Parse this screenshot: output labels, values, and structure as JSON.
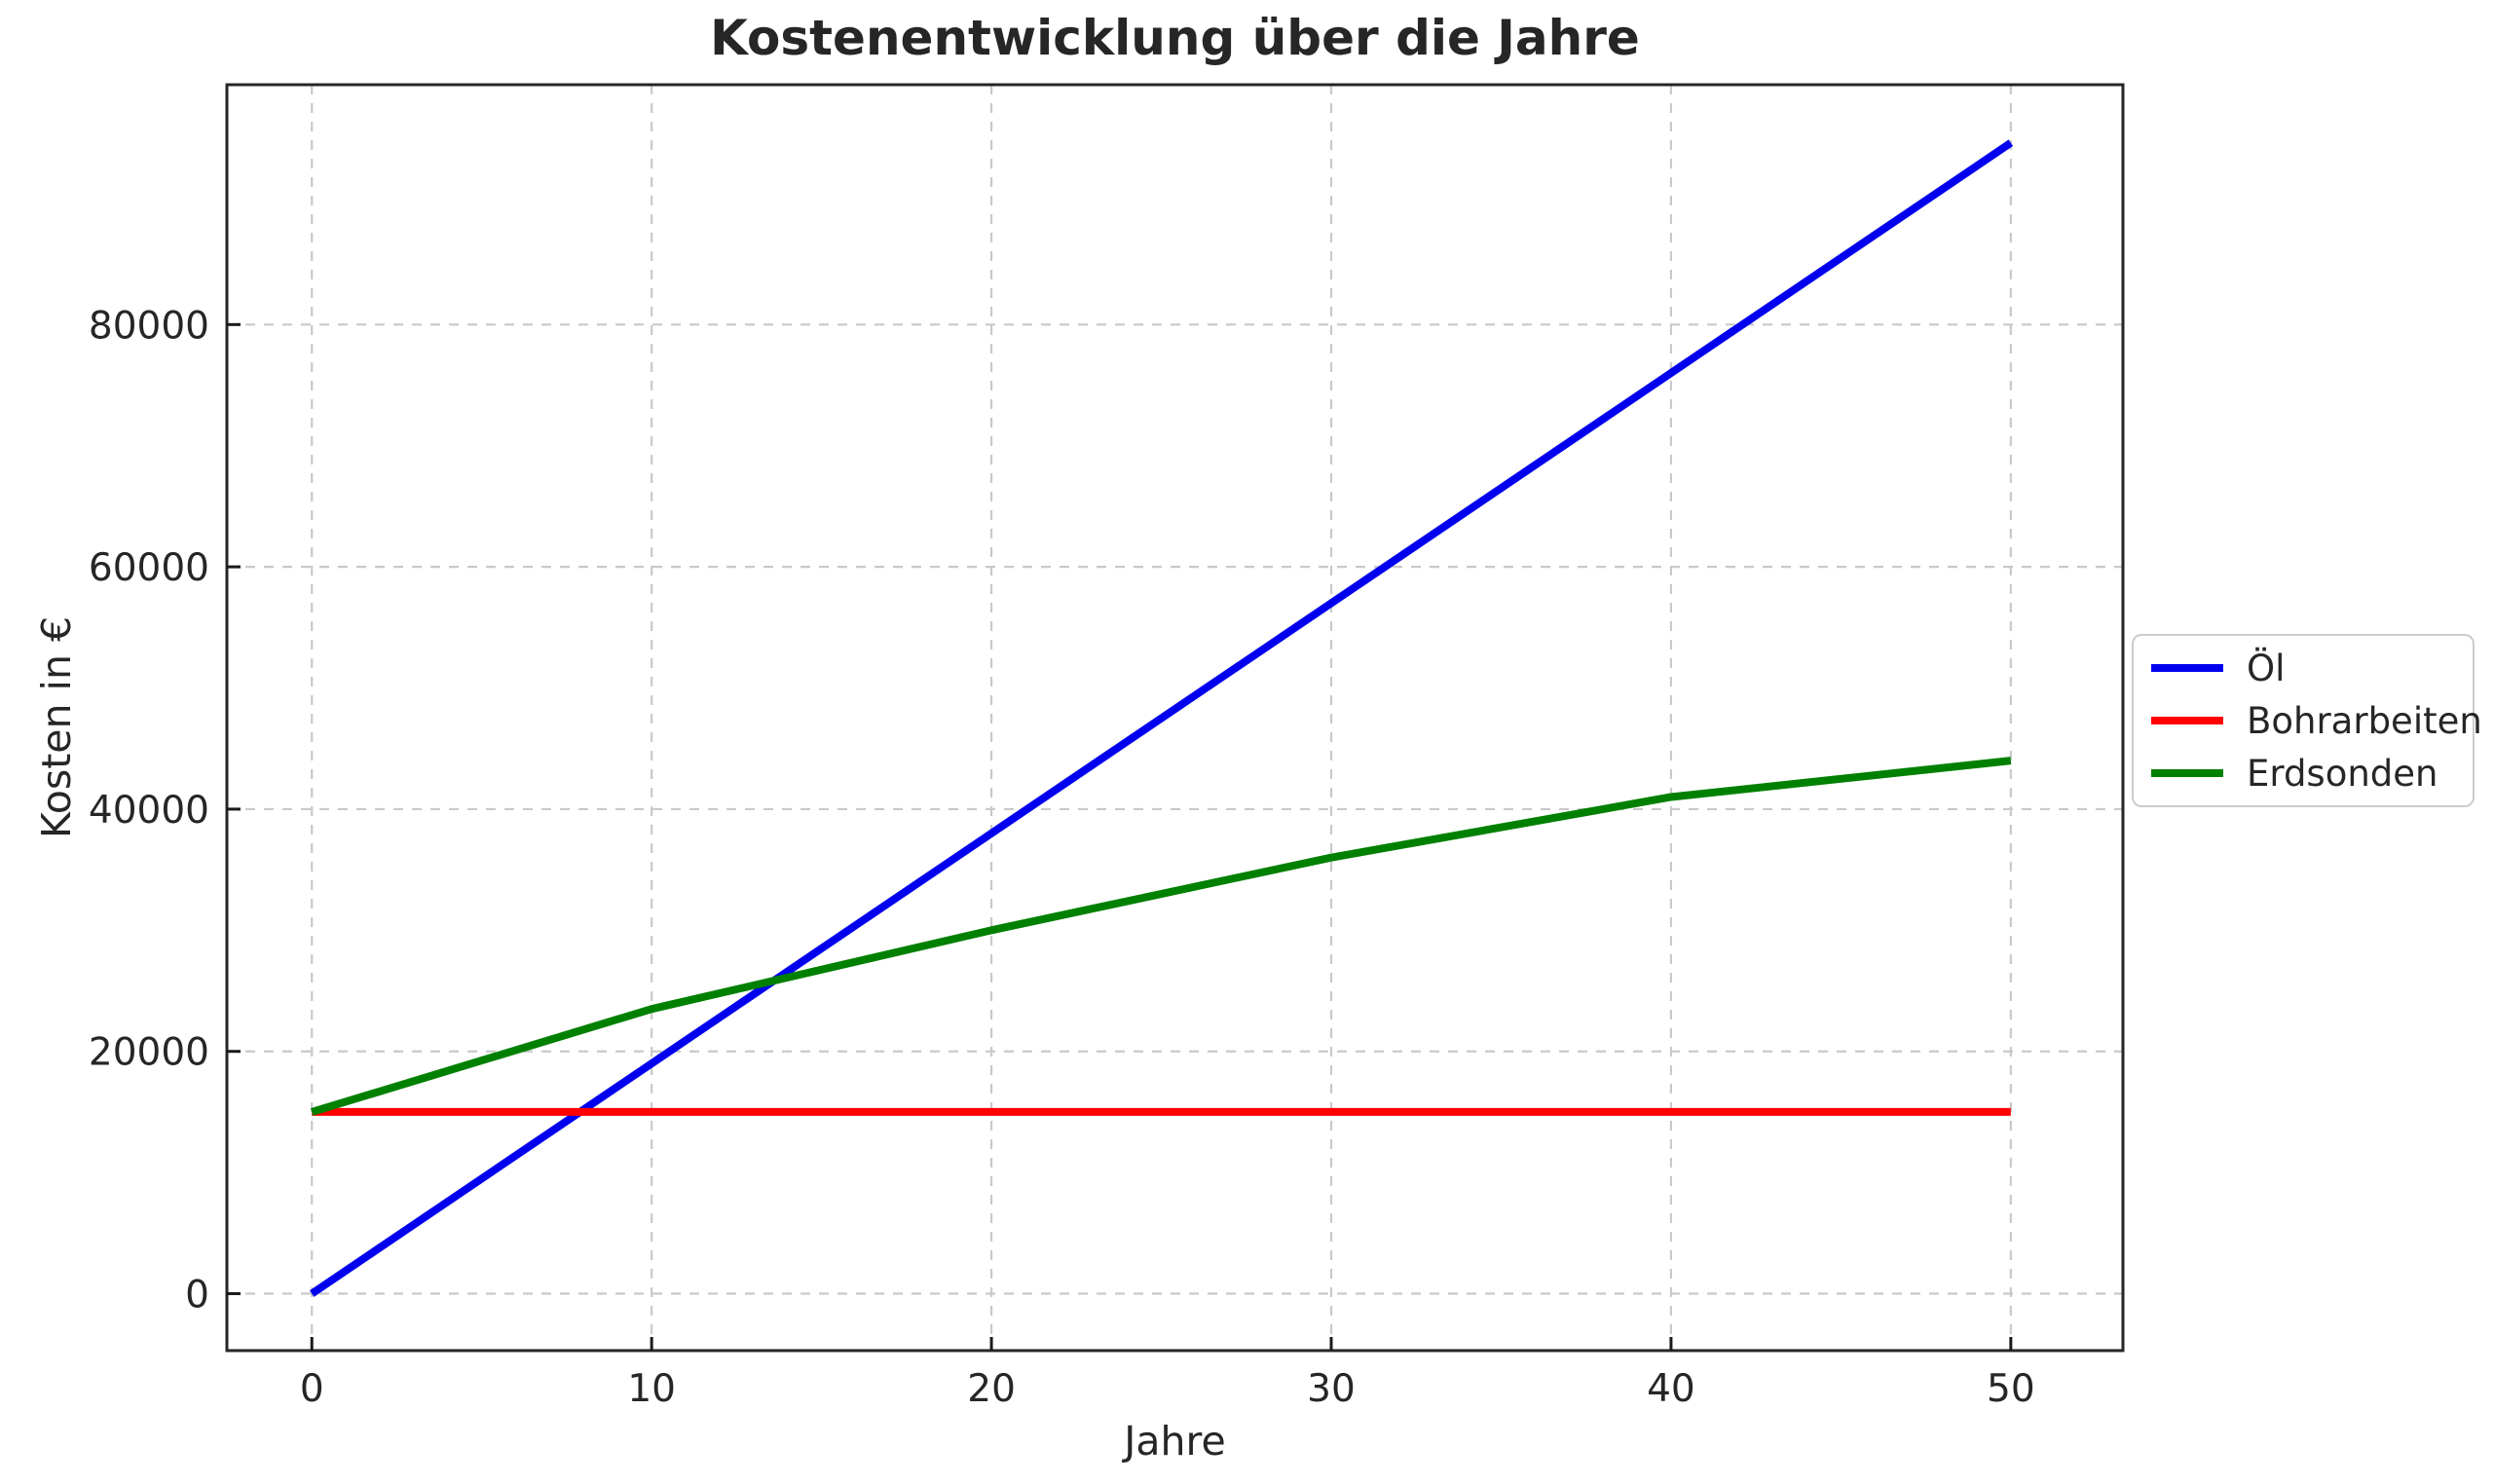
{
  "figure": {
    "background": "#ffffff"
  },
  "chart_data": {
    "type": "line",
    "title": "Kostenentwicklung über die Jahre",
    "xlabel": "Jahre",
    "ylabel": "Kosten in €",
    "x": [
      0,
      10,
      20,
      30,
      40,
      50
    ],
    "series": [
      {
        "name": "Öl",
        "color": "#0000ee",
        "values": [
          0,
          19000,
          38000,
          57000,
          76000,
          95000
        ]
      },
      {
        "name": "Bohrarbeiten",
        "color": "#ff0000",
        "values": [
          15000,
          15000,
          15000,
          15000,
          15000,
          15000
        ]
      },
      {
        "name": "Erdsonden",
        "color": "#008000",
        "values": [
          15000,
          23500,
          30000,
          36000,
          41000,
          44000
        ]
      }
    ],
    "xticks": [
      "0",
      "10",
      "20",
      "30",
      "40",
      "50"
    ],
    "yticks": [
      "0",
      "20000",
      "40000",
      "60000",
      "80000"
    ],
    "xtick_values": [
      0,
      10,
      20,
      30,
      40,
      50
    ],
    "ytick_values": [
      0,
      20000,
      40000,
      60000,
      80000
    ],
    "xlim": [
      -2.5,
      53.3
    ],
    "ylim": [
      -4700,
      99800
    ],
    "grid": true,
    "grid_style": "dashed",
    "legend_position": "center right, outside axes",
    "legend_entries": [
      "Öl",
      "Bohrarbeiten",
      "Erdsonden"
    ]
  },
  "style": {
    "text_color": "#262626",
    "spine_color": "#262626",
    "grid_color": "#c9c9c9",
    "tick_color": "#1a1a1a",
    "line_width": 8
  }
}
